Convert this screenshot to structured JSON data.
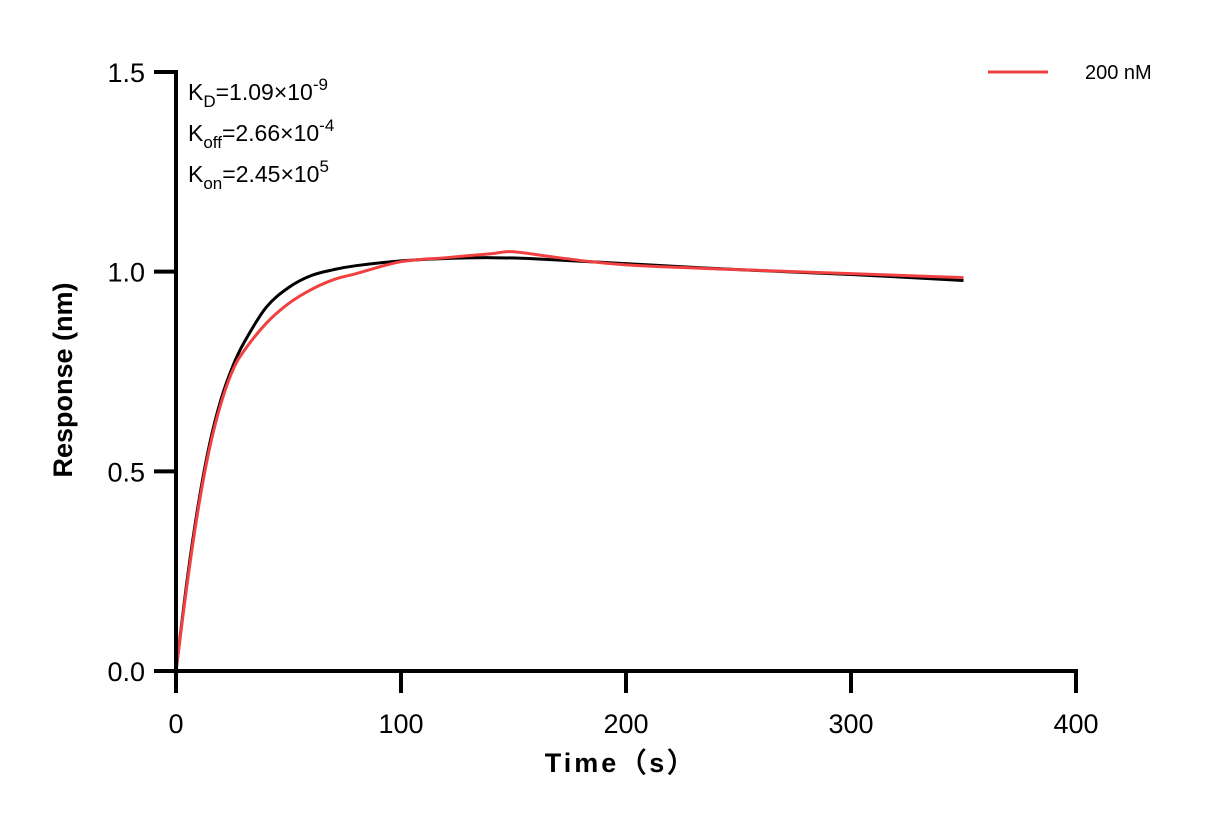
{
  "chart_data": {
    "type": "line",
    "title": "",
    "xlabel": "Time（s）",
    "ylabel": "Response (nm)",
    "xlim": [
      0,
      400
    ],
    "ylim": [
      0,
      1.5
    ],
    "xticks": [
      0,
      100,
      200,
      300,
      400
    ],
    "xtick_labels": [
      "0",
      "100",
      "200",
      "300",
      "400"
    ],
    "yticks": [
      0,
      0.5,
      1.0,
      1.5
    ],
    "ytick_labels": [
      "0.0",
      "0.5",
      "1.0",
      "1.5"
    ],
    "grid": false,
    "legend_position": "top-right",
    "annotations": [
      {
        "base": "K",
        "sub": "D",
        "text": "=1.09×10",
        "sup": "-9"
      },
      {
        "base": "K",
        "sub": "off",
        "text": "=2.66×10",
        "sup": "-4"
      },
      {
        "base": "K",
        "sub": "on",
        "text": "=2.45×10",
        "sup": "5"
      }
    ],
    "series": [
      {
        "name": "200 nM",
        "color": "#f04040",
        "x": [
          0,
          5,
          10,
          15,
          20,
          25,
          30,
          40,
          50,
          60,
          70,
          80,
          100,
          120,
          140,
          150,
          170,
          200,
          250,
          300,
          350
        ],
        "y": [
          0,
          0.22,
          0.41,
          0.56,
          0.67,
          0.75,
          0.8,
          0.87,
          0.92,
          0.955,
          0.98,
          0.995,
          1.025,
          1.035,
          1.045,
          1.05,
          1.035,
          1.017,
          1.005,
          0.995,
          0.985
        ]
      },
      {
        "color": "#000000",
        "x": [
          0,
          5,
          10,
          15,
          20,
          25,
          30,
          40,
          50,
          60,
          70,
          80,
          100,
          120,
          140,
          160,
          200,
          250,
          300,
          350
        ],
        "y": [
          0,
          0.23,
          0.42,
          0.57,
          0.68,
          0.76,
          0.82,
          0.91,
          0.96,
          0.99,
          1.005,
          1.015,
          1.027,
          1.033,
          1.035,
          1.032,
          1.02,
          1.005,
          0.993,
          0.978
        ]
      }
    ]
  }
}
